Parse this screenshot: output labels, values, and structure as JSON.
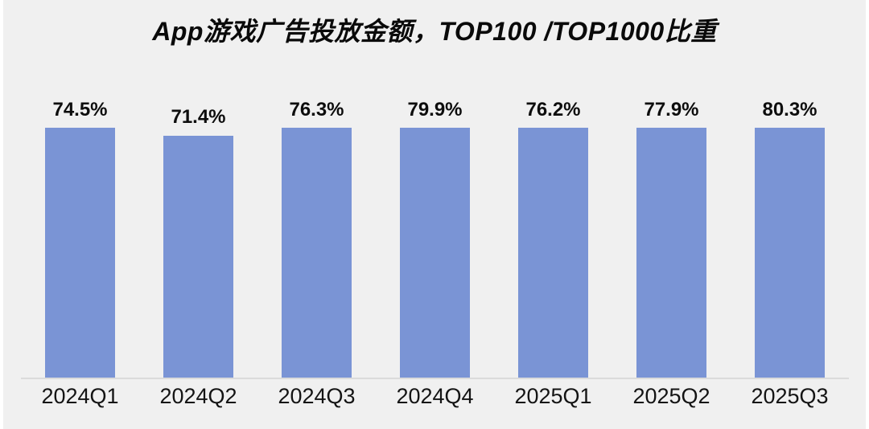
{
  "chart_data": {
    "type": "bar",
    "title": "App游戏广告投放金额，TOP100 /TOP1000比重",
    "categories": [
      "2024Q1",
      "2024Q2",
      "2024Q3",
      "2024Q4",
      "2025Q1",
      "2025Q2",
      "2025Q3"
    ],
    "values": [
      74.5,
      71.4,
      76.3,
      79.9,
      76.2,
      77.9,
      80.3
    ],
    "value_labels": [
      "74.5%",
      "71.4%",
      "76.3%",
      "79.9%",
      "76.2%",
      "77.9%",
      "80.3%"
    ],
    "unit": "%",
    "xlabel": "",
    "ylabel": "",
    "ylim": [
      0,
      82
    ],
    "grid": false,
    "legend": "none",
    "colors": {
      "bar": "#7A94D5",
      "panel_background": "#F0F0F0",
      "page_background": "#FFFFFF",
      "axis_line": "#DBDBDB",
      "text": "#0D0D0D"
    }
  }
}
